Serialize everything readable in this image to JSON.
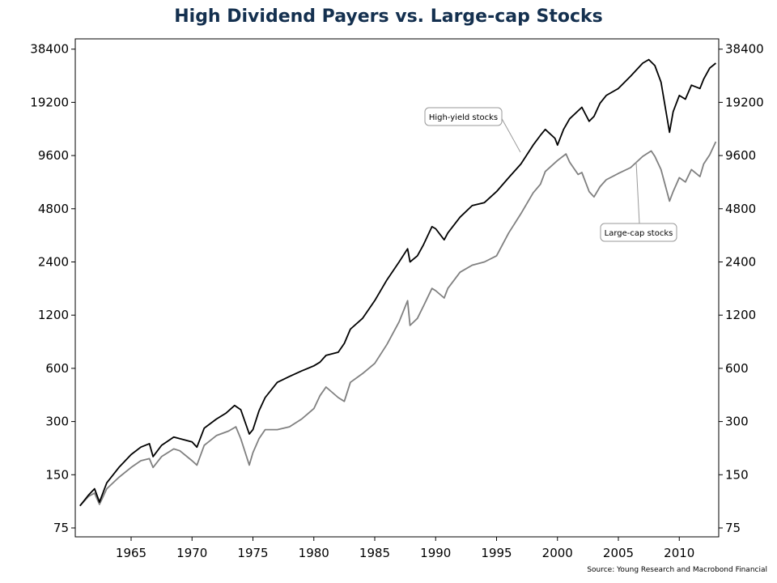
{
  "chart_data": {
    "type": "line",
    "title": "High Dividend Payers vs. Large-cap Stocks",
    "source": "Source: Young Research and Macrobond Financial",
    "y_scale": "log2",
    "ylim": [
      70,
      44000
    ],
    "xlim": [
      1960.8,
      2013.1
    ],
    "x_ticks": [
      1965,
      1970,
      1975,
      1980,
      1985,
      1990,
      1995,
      2000,
      2005,
      2010
    ],
    "y_ticks": [
      75,
      150,
      300,
      600,
      1200,
      2400,
      4800,
      9600,
      19200,
      38400
    ],
    "y_axis_both_sides": true,
    "grid": false,
    "annotations": [
      {
        "label": "High-yield stocks",
        "series": "High-yield stocks"
      },
      {
        "label": "Large-cap stocks",
        "series": "Large-cap stocks"
      }
    ],
    "series": [
      {
        "name": "High-yield stocks",
        "color": "#000000",
        "points": [
          [
            1960.8,
            100
          ],
          [
            1961.5,
            115
          ],
          [
            1962.0,
            125
          ],
          [
            1962.4,
            105
          ],
          [
            1963.0,
            135
          ],
          [
            1964.0,
            165
          ],
          [
            1965.0,
            195
          ],
          [
            1965.8,
            215
          ],
          [
            1966.5,
            225
          ],
          [
            1966.8,
            190
          ],
          [
            1967.5,
            220
          ],
          [
            1968.5,
            245
          ],
          [
            1969.0,
            240
          ],
          [
            1970.0,
            230
          ],
          [
            1970.4,
            215
          ],
          [
            1971.0,
            275
          ],
          [
            1972.0,
            310
          ],
          [
            1972.8,
            335
          ],
          [
            1973.5,
            370
          ],
          [
            1974.0,
            350
          ],
          [
            1974.7,
            255
          ],
          [
            1975.0,
            270
          ],
          [
            1975.5,
            345
          ],
          [
            1976.0,
            410
          ],
          [
            1977.0,
            500
          ],
          [
            1978.0,
            540
          ],
          [
            1979.0,
            580
          ],
          [
            1980.0,
            620
          ],
          [
            1980.5,
            650
          ],
          [
            1981.0,
            710
          ],
          [
            1982.0,
            740
          ],
          [
            1982.5,
            830
          ],
          [
            1983.0,
            1000
          ],
          [
            1984.0,
            1150
          ],
          [
            1985.0,
            1450
          ],
          [
            1986.0,
            1900
          ],
          [
            1987.0,
            2400
          ],
          [
            1987.7,
            2850
          ],
          [
            1987.9,
            2400
          ],
          [
            1988.5,
            2600
          ],
          [
            1989.0,
            3000
          ],
          [
            1989.7,
            3800
          ],
          [
            1990.0,
            3700
          ],
          [
            1990.7,
            3200
          ],
          [
            1991.0,
            3500
          ],
          [
            1992.0,
            4300
          ],
          [
            1993.0,
            5000
          ],
          [
            1994.0,
            5200
          ],
          [
            1995.0,
            6000
          ],
          [
            1996.0,
            7200
          ],
          [
            1997.0,
            8600
          ],
          [
            1998.0,
            11000
          ],
          [
            1998.6,
            12500
          ],
          [
            1999.0,
            13500
          ],
          [
            1999.8,
            12000
          ],
          [
            2000.0,
            11000
          ],
          [
            2000.5,
            13500
          ],
          [
            2001.0,
            15500
          ],
          [
            2002.0,
            18000
          ],
          [
            2002.6,
            15000
          ],
          [
            2003.0,
            16000
          ],
          [
            2003.5,
            19000
          ],
          [
            2004.0,
            21000
          ],
          [
            2005.0,
            23000
          ],
          [
            2006.0,
            27000
          ],
          [
            2007.0,
            32000
          ],
          [
            2007.5,
            33500
          ],
          [
            2008.0,
            31000
          ],
          [
            2008.5,
            25000
          ],
          [
            2009.2,
            13000
          ],
          [
            2009.5,
            17000
          ],
          [
            2010.0,
            21000
          ],
          [
            2010.5,
            20000
          ],
          [
            2011.0,
            24000
          ],
          [
            2011.7,
            23000
          ],
          [
            2012.0,
            26000
          ],
          [
            2012.5,
            30000
          ],
          [
            2013.0,
            32000
          ]
        ]
      },
      {
        "name": "Large-cap stocks",
        "color": "#808080",
        "points": [
          [
            1960.8,
            100
          ],
          [
            1961.5,
            113
          ],
          [
            1962.0,
            118
          ],
          [
            1962.4,
            102
          ],
          [
            1963.0,
            125
          ],
          [
            1964.0,
            145
          ],
          [
            1965.0,
            165
          ],
          [
            1965.8,
            180
          ],
          [
            1966.5,
            185
          ],
          [
            1966.8,
            165
          ],
          [
            1967.5,
            190
          ],
          [
            1968.5,
            210
          ],
          [
            1969.0,
            205
          ],
          [
            1970.0,
            180
          ],
          [
            1970.4,
            170
          ],
          [
            1971.0,
            220
          ],
          [
            1972.0,
            250
          ],
          [
            1973.0,
            265
          ],
          [
            1973.6,
            280
          ],
          [
            1974.0,
            240
          ],
          [
            1974.7,
            170
          ],
          [
            1975.0,
            200
          ],
          [
            1975.5,
            240
          ],
          [
            1976.0,
            270
          ],
          [
            1977.0,
            270
          ],
          [
            1978.0,
            280
          ],
          [
            1979.0,
            310
          ],
          [
            1980.0,
            355
          ],
          [
            1980.5,
            420
          ],
          [
            1981.0,
            470
          ],
          [
            1982.0,
            410
          ],
          [
            1982.5,
            390
          ],
          [
            1983.0,
            500
          ],
          [
            1984.0,
            560
          ],
          [
            1985.0,
            640
          ],
          [
            1986.0,
            820
          ],
          [
            1987.0,
            1100
          ],
          [
            1987.7,
            1450
          ],
          [
            1987.9,
            1050
          ],
          [
            1988.5,
            1150
          ],
          [
            1989.0,
            1350
          ],
          [
            1989.7,
            1700
          ],
          [
            1990.0,
            1650
          ],
          [
            1990.7,
            1500
          ],
          [
            1991.0,
            1700
          ],
          [
            1992.0,
            2100
          ],
          [
            1993.0,
            2300
          ],
          [
            1994.0,
            2400
          ],
          [
            1995.0,
            2600
          ],
          [
            1996.0,
            3500
          ],
          [
            1997.0,
            4500
          ],
          [
            1998.0,
            5900
          ],
          [
            1998.6,
            6600
          ],
          [
            1999.0,
            7800
          ],
          [
            2000.0,
            9000
          ],
          [
            2000.7,
            9800
          ],
          [
            2001.0,
            8800
          ],
          [
            2001.7,
            7500
          ],
          [
            2002.0,
            7700
          ],
          [
            2002.6,
            6000
          ],
          [
            2003.0,
            5600
          ],
          [
            2003.5,
            6400
          ],
          [
            2004.0,
            7000
          ],
          [
            2005.0,
            7600
          ],
          [
            2006.0,
            8200
          ],
          [
            2007.0,
            9500
          ],
          [
            2007.7,
            10200
          ],
          [
            2008.0,
            9500
          ],
          [
            2008.5,
            8000
          ],
          [
            2009.2,
            5300
          ],
          [
            2009.5,
            6000
          ],
          [
            2010.0,
            7200
          ],
          [
            2010.5,
            6800
          ],
          [
            2011.0,
            8000
          ],
          [
            2011.7,
            7300
          ],
          [
            2012.0,
            8600
          ],
          [
            2012.5,
            9700
          ],
          [
            2013.0,
            11500
          ]
        ]
      }
    ]
  }
}
